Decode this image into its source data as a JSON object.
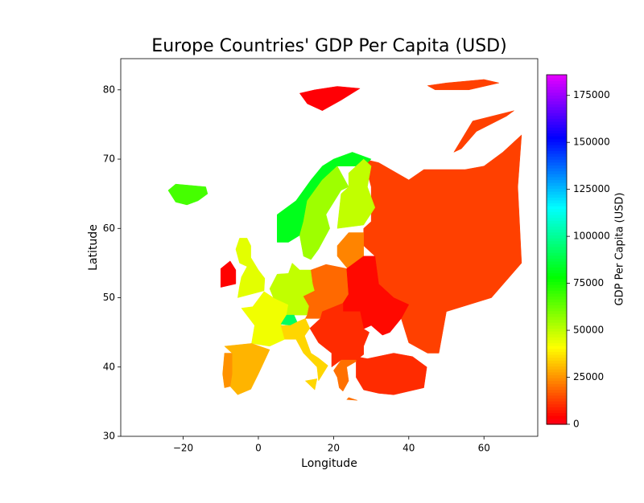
{
  "chart_data": {
    "type": "choropleth",
    "title": "Europe Countries' GDP Per Capita (USD)",
    "x_label": "Longitude",
    "y_label": "Latitude",
    "xlim": [
      -36.6,
      74.3
    ],
    "ylim": [
      30,
      84.5
    ],
    "xticks": [
      {
        "value": -20,
        "label": "−20"
      },
      0,
      20,
      40,
      60
    ],
    "yticks": [
      30,
      40,
      50,
      60,
      70,
      80
    ],
    "values": [
      13000,
      10000,
      82000,
      55000,
      50000,
      68000,
      45000,
      4000,
      43000,
      30000,
      25000,
      50000,
      92000,
      35000,
      19000,
      23000,
      5000,
      10000,
      20000,
      3000
    ],
    "colorbar": {
      "label": "GDP Per Capita (USD)",
      "cmap": "gist_rainbow",
      "lim": [
        0,
        186000
      ],
      "ticks": [
        0,
        25000,
        50000,
        75000,
        100000,
        125000,
        150000,
        175000
      ]
    }
  }
}
